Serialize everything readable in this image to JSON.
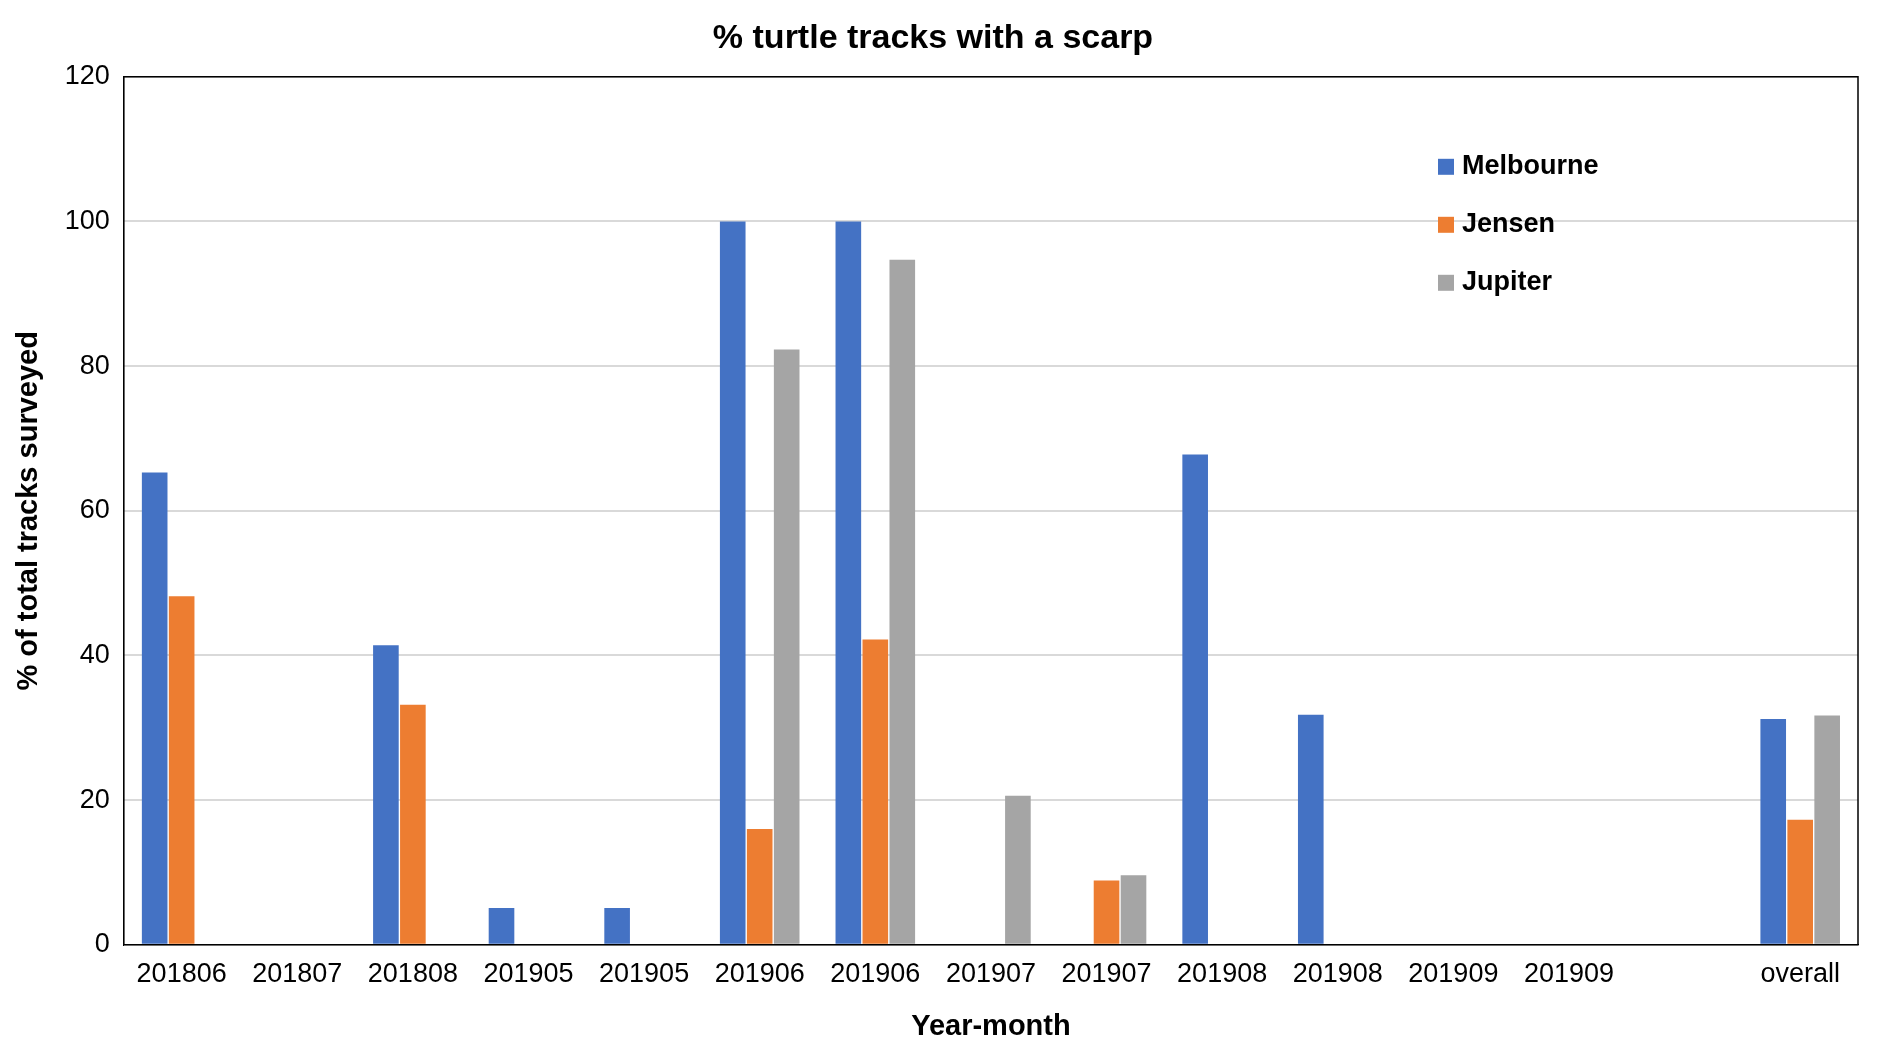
{
  "chart_data": {
    "type": "bar",
    "title": "% turtle tracks with a scarp",
    "xlabel": "Year-month",
    "ylabel": "% of total tracks surveyed",
    "categories": [
      "201806",
      "201807",
      "201808",
      "201905",
      "201905",
      "201906",
      "201906",
      "201907",
      "201907",
      "201908",
      "201908",
      "201909",
      "201909",
      null,
      "overall"
    ],
    "series": [
      {
        "name": "Melbourne",
        "color": "#4472c4",
        "values": [
          65.3,
          null,
          41.4,
          5.1,
          5.1,
          100,
          100,
          null,
          null,
          67.8,
          31.8,
          null,
          null,
          null,
          31.2
        ]
      },
      {
        "name": "Jensen",
        "color": "#ed7d31",
        "values": [
          48.2,
          null,
          33.2,
          null,
          null,
          16.0,
          42.2,
          null,
          8.9,
          null,
          null,
          null,
          null,
          null,
          17.3
        ]
      },
      {
        "name": "Jupiter",
        "color": "#a5a5a5",
        "values": [
          null,
          null,
          null,
          null,
          null,
          82.3,
          94.7,
          20.6,
          9.6,
          null,
          null,
          null,
          null,
          null,
          31.7
        ]
      }
    ],
    "ylim": [
      0,
      120
    ],
    "yticks": [
      0,
      20,
      40,
      60,
      80,
      100,
      120
    ],
    "grid": "y",
    "legend": "top right"
  }
}
